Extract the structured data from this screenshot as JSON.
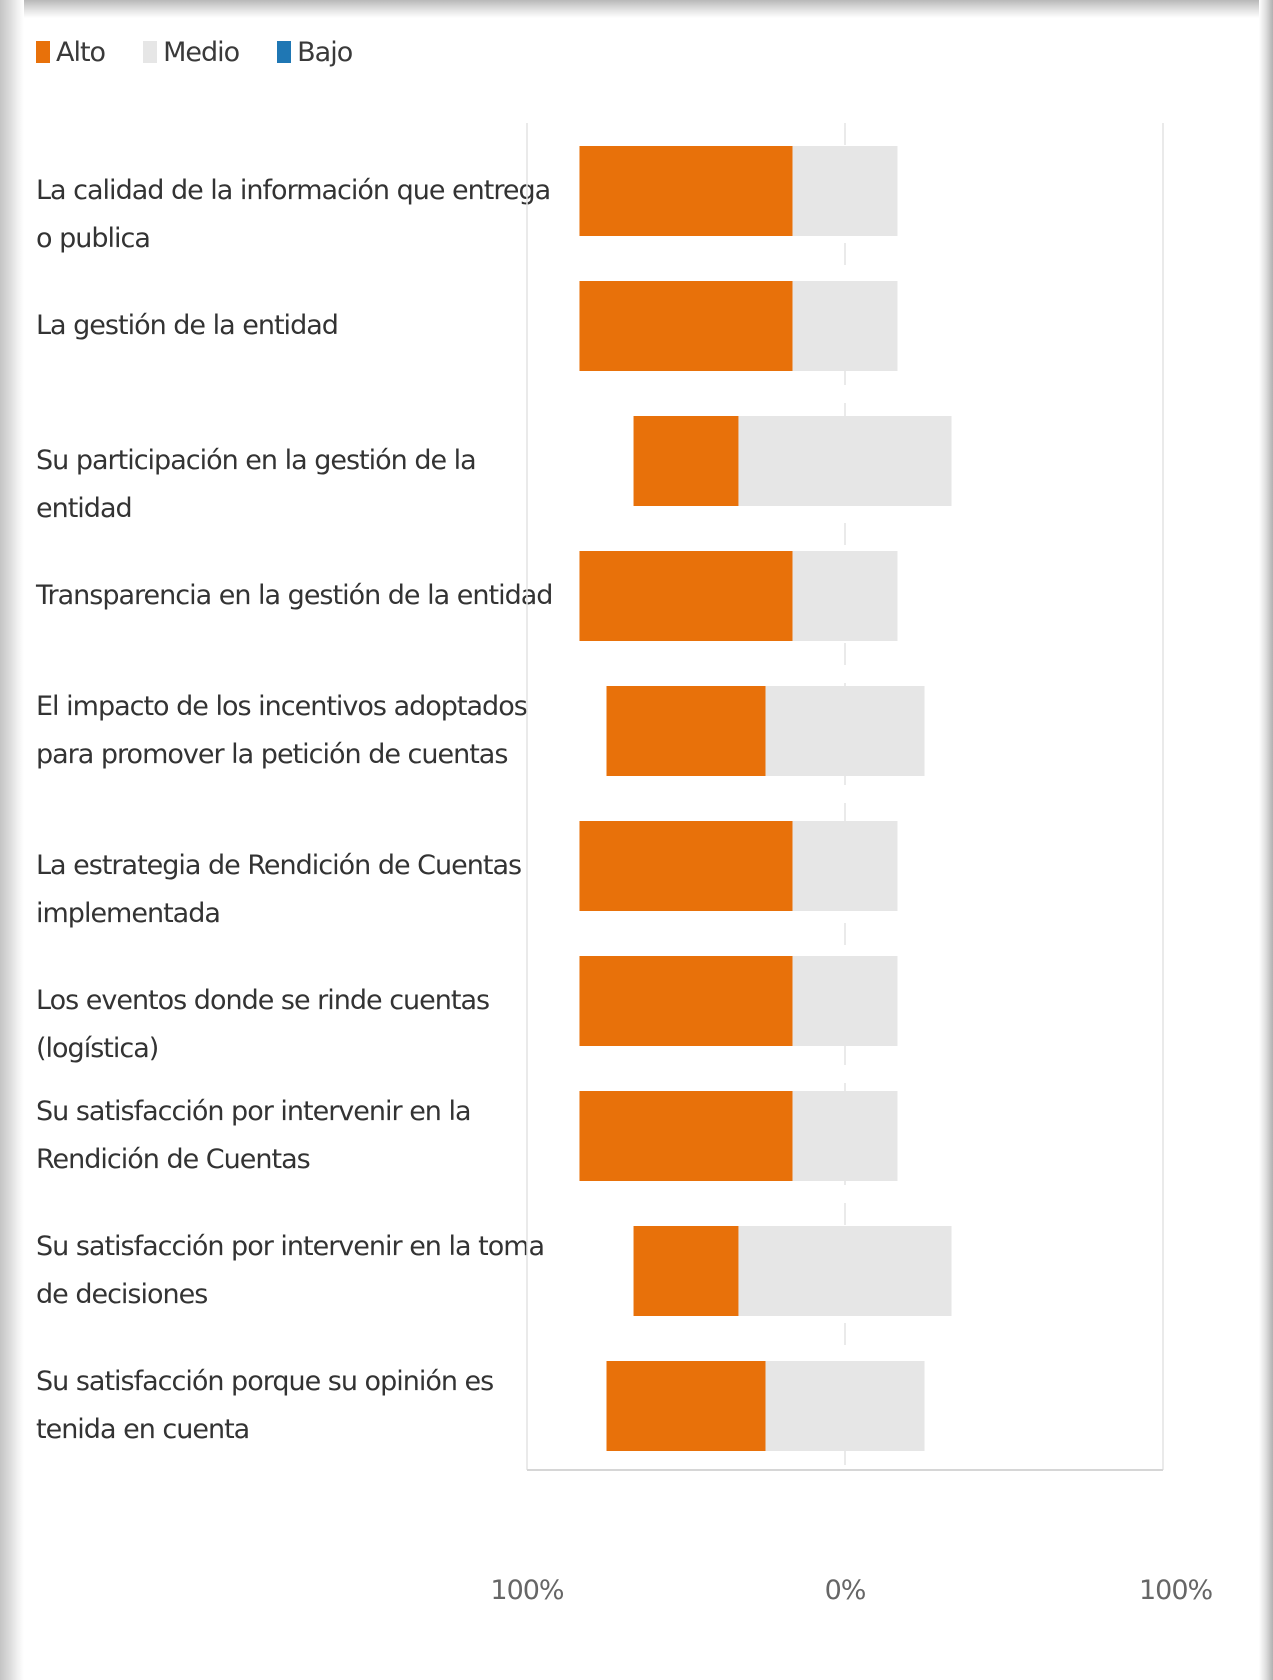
{
  "chart_data": {
    "type": "bar",
    "subtype": "diverging-stacked-horizontal",
    "legend_position": "top-left",
    "grid": true,
    "series": [
      {
        "name": "Alto",
        "color": "#E8710A",
        "values": [
          67,
          67,
          33,
          67,
          50,
          67,
          67,
          67,
          33,
          50
        ]
      },
      {
        "name": "Medio",
        "color": "#E6E6E6",
        "values": [
          33,
          33,
          67,
          33,
          50,
          33,
          33,
          33,
          67,
          50
        ]
      },
      {
        "name": "Bajo",
        "color": "#1F77B4",
        "values": [
          0,
          0,
          0,
          0,
          0,
          0,
          0,
          0,
          0,
          0
        ]
      }
    ],
    "categories": [
      "La calidad de la información que entrega o publica",
      "La gestión de la entidad",
      "Su participación en la gestión de la entidad",
      "Transparencia en la gestión de la entidad",
      "El impacto de los incentivos adoptados para promover la petición de cuentas",
      "La estrategia de Rendición de Cuentas implementada",
      "Los eventos donde se rinde cuentas (logística)",
      "Su satisfacción por intervenir en la Rendición de Cuentas",
      "Su satisfacción por intervenir en la toma de decisiones",
      "Su satisfacción porque su opinión es tenida en cuenta"
    ],
    "x_ticks": [
      "100%",
      "0%",
      "100%"
    ],
    "xlim": [
      -100,
      100
    ],
    "xlabel": "",
    "ylabel": "",
    "title": ""
  }
}
